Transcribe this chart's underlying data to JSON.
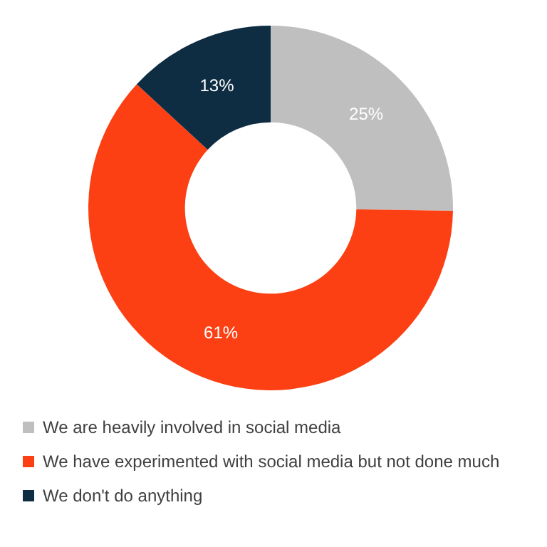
{
  "chart_data": {
    "type": "donut",
    "categories": [
      "We are heavily involved in social media",
      "We have experimented with social media but not done much",
      "We don't do anything"
    ],
    "values": [
      25,
      61,
      13
    ],
    "colors": [
      "#bfbfbf",
      "#fc4014",
      "#0f2d42"
    ],
    "value_labels": [
      "25%",
      "61%",
      "13%"
    ],
    "legend": "bottom"
  }
}
